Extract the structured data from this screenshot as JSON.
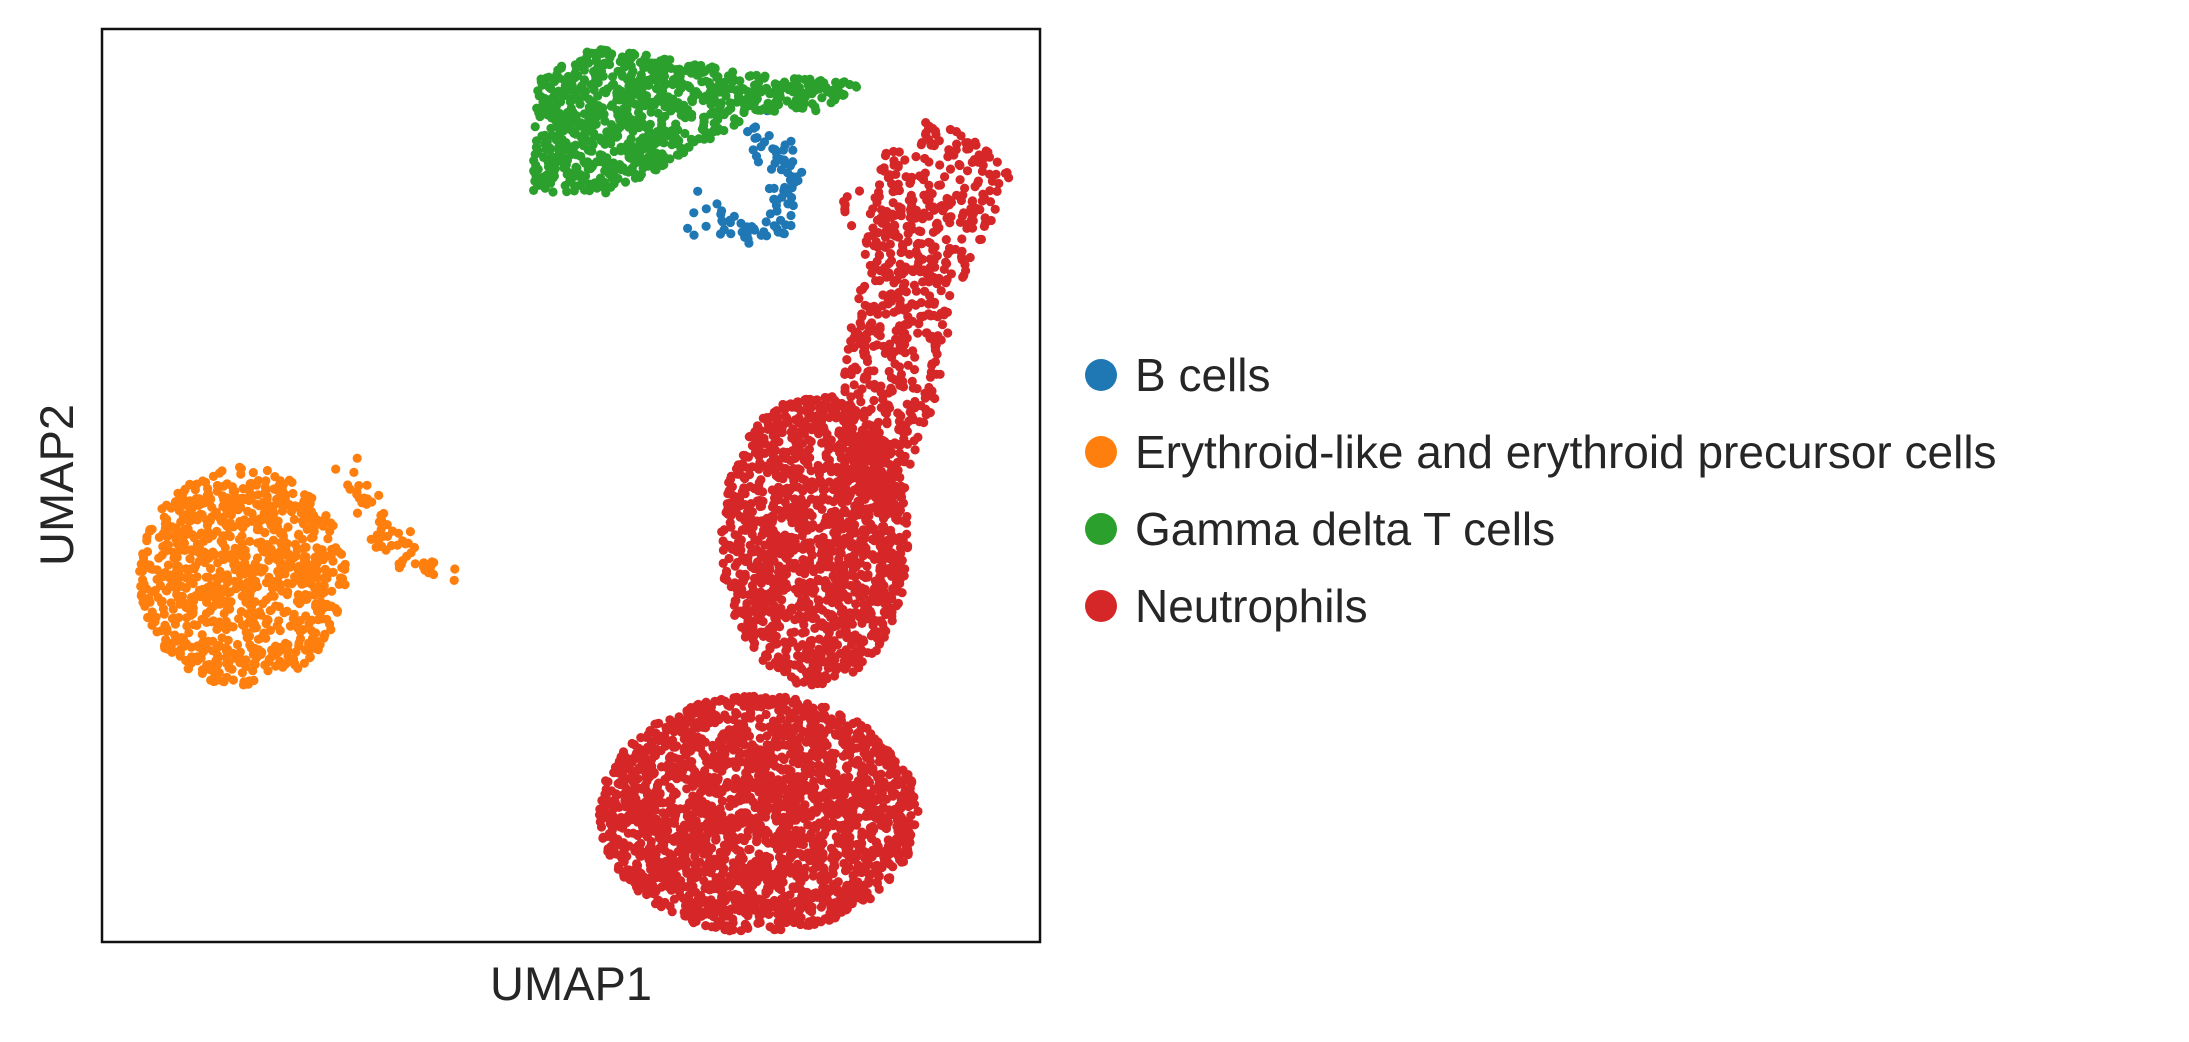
{
  "chart_data": {
    "type": "scatter",
    "xlabel": "UMAP1",
    "ylabel": "UMAP2",
    "xticks": [],
    "yticks": [],
    "grid": false,
    "legend_position": "right",
    "series": [
      {
        "name": "B cells",
        "color": "#1f77b4",
        "clusters": [
          {
            "shape": "arc",
            "points": [
              [
                0.62,
                0.82
              ],
              [
                0.65,
                0.79
              ],
              [
                0.68,
                0.78
              ],
              [
                0.7,
                0.78
              ],
              [
                0.72,
                0.79
              ],
              [
                0.73,
                0.81
              ],
              [
                0.73,
                0.84
              ],
              [
                0.72,
                0.86
              ],
              [
                0.71,
                0.88
              ],
              [
                0.7,
                0.89
              ]
            ],
            "count": 95
          }
        ]
      },
      {
        "name": "Erythroid-like and erythroid precursor cells",
        "color": "#ff7f0e",
        "clusters": [
          {
            "shape": "ellipse",
            "center": [
              0.15,
              0.4
            ],
            "radius": [
              0.11,
              0.12
            ],
            "count": 900
          },
          {
            "shape": "tail",
            "points": [
              [
                0.26,
                0.52
              ],
              [
                0.28,
                0.48
              ],
              [
                0.3,
                0.44
              ],
              [
                0.33,
                0.42
              ],
              [
                0.36,
                0.4
              ]
            ],
            "count": 60
          }
        ]
      },
      {
        "name": "Gamma delta T cells",
        "color": "#2ca02c",
        "clusters": [
          {
            "shape": "polygon",
            "points": [
              [
                0.46,
                0.88
              ],
              [
                0.46,
                0.94
              ],
              [
                0.52,
                0.98
              ],
              [
                0.59,
                0.97
              ],
              [
                0.7,
                0.95
              ],
              [
                0.82,
                0.94
              ],
              [
                0.76,
                0.91
              ],
              [
                0.7,
                0.91
              ],
              [
                0.65,
                0.88
              ],
              [
                0.6,
                0.85
              ],
              [
                0.54,
                0.82
              ],
              [
                0.46,
                0.82
              ]
            ],
            "count": 820
          }
        ]
      },
      {
        "name": "Neutrophils",
        "color": "#d62728",
        "clusters": [
          {
            "shape": "ellipse",
            "center": [
              0.7,
              0.14
            ],
            "radius": [
              0.17,
              0.13
            ],
            "count": 2300
          },
          {
            "shape": "ellipse",
            "center": [
              0.76,
              0.44
            ],
            "radius": [
              0.1,
              0.16
            ],
            "count": 1400
          },
          {
            "shape": "polygon",
            "points": [
              [
                0.85,
                0.48
              ],
              [
                0.89,
                0.6
              ],
              [
                0.91,
                0.71
              ],
              [
                0.95,
                0.79
              ],
              [
                0.97,
                0.84
              ],
              [
                0.93,
                0.88
              ],
              [
                0.88,
                0.9
              ],
              [
                0.83,
                0.86
              ],
              [
                0.81,
                0.74
              ],
              [
                0.79,
                0.62
              ],
              [
                0.78,
                0.5
              ]
            ],
            "count": 650
          },
          {
            "shape": "sparse",
            "points": [
              [
                0.8,
                0.81
              ],
              [
                0.82,
                0.8
              ],
              [
                0.84,
                0.79
              ],
              [
                0.86,
                0.76
              ]
            ],
            "count": 25
          }
        ]
      }
    ]
  }
}
